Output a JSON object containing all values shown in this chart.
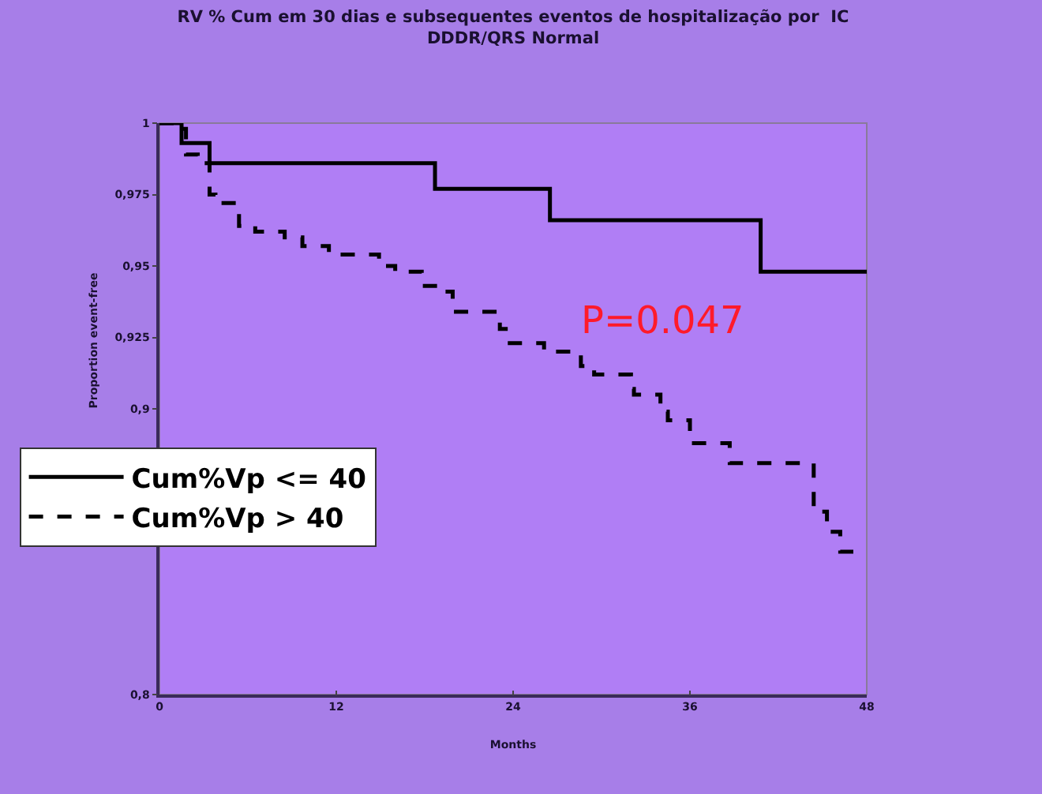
{
  "chart_data": {
    "type": "step",
    "title": "RV % Cum em 30 dias e subsequentes eventos de hospitalização por  IC\nDDDR/QRS Normal",
    "xlabel": "Months",
    "ylabel": "Proportion event-free",
    "annotations": [
      "P=0.047"
    ],
    "xlim": [
      0,
      48
    ],
    "xticks": [
      0,
      12,
      24,
      36,
      48
    ],
    "ylim": [
      0.8,
      1
    ],
    "yticks": [
      {
        "value": 0.8,
        "label": "0,8"
      },
      {
        "value": 0.9,
        "label": "0,9"
      },
      {
        "value": 0.925,
        "label": "0,925"
      },
      {
        "value": 0.95,
        "label": "0,95"
      },
      {
        "value": 0.975,
        "label": "0,975"
      },
      1
    ],
    "legend": "bottom left",
    "grid": false,
    "marker": "none",
    "series": [
      {
        "name": "Cum%Vp <= 40",
        "color": "#000000",
        "line_style": "solid",
        "x": [
          0,
          1.5,
          3.4,
          18.7,
          26.5,
          40.8,
          48
        ],
        "values": [
          1,
          0.993,
          0.986,
          0.977,
          0.966,
          0.948,
          0.948
        ]
      },
      {
        "name": "Cum%Vp > 40",
        "color": "#000000",
        "line_style": "dashed",
        "x": [
          0,
          1.1,
          1.8,
          2.6,
          3.4,
          3.8,
          5.4,
          6.5,
          8.5,
          9.7,
          11.5,
          14.9,
          16,
          17.8,
          18.9,
          19.9,
          23.1,
          23.5,
          26.1,
          28.6,
          29.5,
          32,
          32.2,
          34,
          34.5,
          36,
          38.7,
          44.4,
          45.3,
          46.2,
          48
        ],
        "values": [
          1,
          0.998,
          0.989,
          0.986,
          0.975,
          0.972,
          0.964,
          0.962,
          0.96,
          0.957,
          0.954,
          0.95,
          0.948,
          0.943,
          0.941,
          0.934,
          0.928,
          0.923,
          0.92,
          0.915,
          0.912,
          0.907,
          0.905,
          0.899,
          0.896,
          0.888,
          0.881,
          0.864,
          0.857,
          0.85,
          0.85
        ]
      }
    ]
  }
}
